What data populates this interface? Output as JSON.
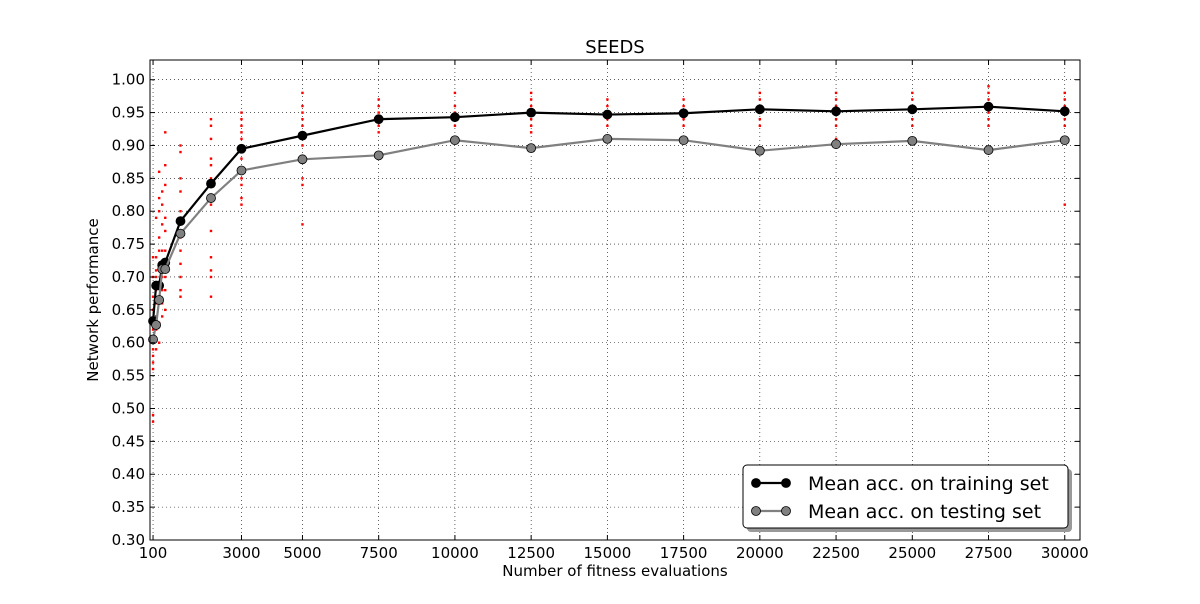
{
  "chart_data": {
    "type": "line",
    "title": "SEEDS",
    "xlabel": "Number of fitness evaluations",
    "ylabel": "Network performance",
    "xlim": [
      0,
      30500
    ],
    "ylim": [
      0.3,
      1.03
    ],
    "grid": true,
    "legend_position": "bottom-right",
    "x_ticks": [
      100,
      3000,
      5000,
      7500,
      10000,
      12500,
      15000,
      17500,
      20000,
      22500,
      25000,
      27500,
      30000
    ],
    "x_tick_labels": [
      "100",
      "3000",
      "5000",
      "7500",
      "10000",
      "12500",
      "15000",
      "17500",
      "20000",
      "22500",
      "25000",
      "27500",
      "30000"
    ],
    "y_ticks": [
      0.3,
      0.35,
      0.4,
      0.45,
      0.5,
      0.55,
      0.6,
      0.65,
      0.7,
      0.75,
      0.8,
      0.85,
      0.9,
      0.95,
      1.0
    ],
    "y_tick_labels": [
      "0.30",
      "0.35",
      "0.40",
      "0.45",
      "0.50",
      "0.55",
      "0.60",
      "0.65",
      "0.70",
      "0.75",
      "0.80",
      "0.85",
      "0.90",
      "0.95",
      "1.00"
    ],
    "x": [
      100,
      200,
      300,
      400,
      500,
      1000,
      2000,
      3000,
      5000,
      7500,
      10000,
      12500,
      15000,
      17500,
      20000,
      22500,
      25000,
      27500,
      30000
    ],
    "series": [
      {
        "name": "Mean acc. on training set",
        "color": "#000000",
        "values": [
          0.633,
          0.687,
          0.687,
          0.718,
          0.722,
          0.785,
          0.842,
          0.895,
          0.915,
          0.94,
          0.943,
          0.95,
          0.947,
          0.949,
          0.955,
          0.952,
          0.955,
          0.959,
          0.952
        ]
      },
      {
        "name": "Mean acc. on testing set",
        "color": "#808080",
        "values": [
          0.605,
          0.627,
          0.665,
          0.712,
          0.712,
          0.766,
          0.82,
          0.862,
          0.879,
          0.885,
          0.908,
          0.896,
          0.91,
          0.908,
          0.892,
          0.902,
          0.907,
          0.893,
          0.908
        ]
      }
    ],
    "scatter": {
      "color": "#ff0000",
      "points": [
        [
          100,
          0.48
        ],
        [
          100,
          0.49
        ],
        [
          100,
          0.56
        ],
        [
          100,
          0.57
        ],
        [
          100,
          0.58
        ],
        [
          100,
          0.59
        ],
        [
          100,
          0.61
        ],
        [
          100,
          0.62
        ],
        [
          100,
          0.63
        ],
        [
          100,
          0.65
        ],
        [
          100,
          0.67
        ],
        [
          100,
          0.7
        ],
        [
          100,
          0.73
        ],
        [
          200,
          0.59
        ],
        [
          200,
          0.62
        ],
        [
          200,
          0.64
        ],
        [
          200,
          0.66
        ],
        [
          200,
          0.68
        ],
        [
          200,
          0.7
        ],
        [
          200,
          0.71
        ],
        [
          200,
          0.73
        ],
        [
          200,
          0.79
        ],
        [
          300,
          0.6
        ],
        [
          300,
          0.63
        ],
        [
          300,
          0.66
        ],
        [
          300,
          0.69
        ],
        [
          300,
          0.72
        ],
        [
          300,
          0.74
        ],
        [
          300,
          0.76
        ],
        [
          300,
          0.8
        ],
        [
          300,
          0.82
        ],
        [
          300,
          0.86
        ],
        [
          400,
          0.64
        ],
        [
          400,
          0.66
        ],
        [
          400,
          0.68
        ],
        [
          400,
          0.7
        ],
        [
          400,
          0.72
        ],
        [
          400,
          0.74
        ],
        [
          400,
          0.78
        ],
        [
          400,
          0.81
        ],
        [
          400,
          0.83
        ],
        [
          500,
          0.65
        ],
        [
          500,
          0.68
        ],
        [
          500,
          0.7
        ],
        [
          500,
          0.72
        ],
        [
          500,
          0.74
        ],
        [
          500,
          0.77
        ],
        [
          500,
          0.79
        ],
        [
          500,
          0.84
        ],
        [
          500,
          0.87
        ],
        [
          500,
          0.92
        ],
        [
          1000,
          0.67
        ],
        [
          1000,
          0.68
        ],
        [
          1000,
          0.7
        ],
        [
          1000,
          0.72
        ],
        [
          1000,
          0.74
        ],
        [
          1000,
          0.76
        ],
        [
          1000,
          0.78
        ],
        [
          1000,
          0.8
        ],
        [
          1000,
          0.83
        ],
        [
          1000,
          0.85
        ],
        [
          1000,
          0.89
        ],
        [
          1000,
          0.9
        ],
        [
          2000,
          0.67
        ],
        [
          2000,
          0.7
        ],
        [
          2000,
          0.71
        ],
        [
          2000,
          0.73
        ],
        [
          2000,
          0.77
        ],
        [
          2000,
          0.81
        ],
        [
          2000,
          0.85
        ],
        [
          2000,
          0.87
        ],
        [
          2000,
          0.88
        ],
        [
          2000,
          0.91
        ],
        [
          2000,
          0.93
        ],
        [
          2000,
          0.94
        ],
        [
          3000,
          0.81
        ],
        [
          3000,
          0.82
        ],
        [
          3000,
          0.84
        ],
        [
          3000,
          0.85
        ],
        [
          3000,
          0.86
        ],
        [
          3000,
          0.88
        ],
        [
          3000,
          0.89
        ],
        [
          3000,
          0.9
        ],
        [
          3000,
          0.91
        ],
        [
          3000,
          0.92
        ],
        [
          3000,
          0.93
        ],
        [
          3000,
          0.94
        ],
        [
          3000,
          0.95
        ],
        [
          5000,
          0.78
        ],
        [
          5000,
          0.84
        ],
        [
          5000,
          0.85
        ],
        [
          5000,
          0.88
        ],
        [
          5000,
          0.9
        ],
        [
          5000,
          0.91
        ],
        [
          5000,
          0.92
        ],
        [
          5000,
          0.93
        ],
        [
          5000,
          0.94
        ],
        [
          5000,
          0.95
        ],
        [
          5000,
          0.96
        ],
        [
          5000,
          0.98
        ],
        [
          7500,
          0.92
        ],
        [
          7500,
          0.93
        ],
        [
          7500,
          0.94
        ],
        [
          7500,
          0.95
        ],
        [
          7500,
          0.96
        ],
        [
          7500,
          0.97
        ],
        [
          10000,
          0.93
        ],
        [
          10000,
          0.94
        ],
        [
          10000,
          0.95
        ],
        [
          10000,
          0.96
        ],
        [
          10000,
          0.98
        ],
        [
          12500,
          0.92
        ],
        [
          12500,
          0.93
        ],
        [
          12500,
          0.94
        ],
        [
          12500,
          0.95
        ],
        [
          12500,
          0.96
        ],
        [
          12500,
          0.97
        ],
        [
          12500,
          0.98
        ],
        [
          15000,
          0.91
        ],
        [
          15000,
          0.93
        ],
        [
          15000,
          0.94
        ],
        [
          15000,
          0.95
        ],
        [
          15000,
          0.96
        ],
        [
          15000,
          0.97
        ],
        [
          17500,
          0.93
        ],
        [
          17500,
          0.94
        ],
        [
          17500,
          0.95
        ],
        [
          17500,
          0.96
        ],
        [
          17500,
          0.97
        ],
        [
          20000,
          0.93
        ],
        [
          20000,
          0.94
        ],
        [
          20000,
          0.95
        ],
        [
          20000,
          0.96
        ],
        [
          20000,
          0.97
        ],
        [
          20000,
          0.98
        ],
        [
          22500,
          0.91
        ],
        [
          22500,
          0.93
        ],
        [
          22500,
          0.94
        ],
        [
          22500,
          0.95
        ],
        [
          22500,
          0.96
        ],
        [
          22500,
          0.97
        ],
        [
          22500,
          0.98
        ],
        [
          25000,
          0.93
        ],
        [
          25000,
          0.94
        ],
        [
          25000,
          0.95
        ],
        [
          25000,
          0.96
        ],
        [
          25000,
          0.97
        ],
        [
          25000,
          0.98
        ],
        [
          27500,
          0.93
        ],
        [
          27500,
          0.94
        ],
        [
          27500,
          0.95
        ],
        [
          27500,
          0.96
        ],
        [
          27500,
          0.97
        ],
        [
          27500,
          0.98
        ],
        [
          27500,
          0.99
        ],
        [
          30000,
          0.81
        ],
        [
          30000,
          0.93
        ],
        [
          30000,
          0.94
        ],
        [
          30000,
          0.95
        ],
        [
          30000,
          0.96
        ],
        [
          30000,
          0.97
        ],
        [
          30000,
          0.98
        ]
      ]
    }
  }
}
